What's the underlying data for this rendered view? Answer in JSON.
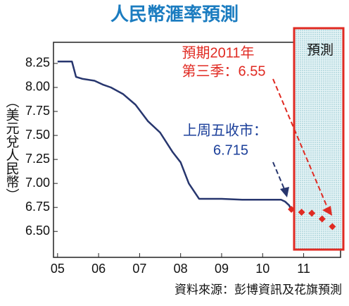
{
  "chart_data": {
    "type": "line",
    "title": "人民幣滙率預測",
    "y_label": "（美元兌人民幣）",
    "source": "資料來源：彭博資訊及花旗預測",
    "annotations": [
      "預期2011年",
      "第三季：6.55",
      "上周五收市：",
      "6.715",
      "預測"
    ],
    "xlim": [
      2004.9,
      2011.9
    ],
    "xticks": [
      {
        "value": 2005,
        "label": "05"
      },
      {
        "value": 2006,
        "label": "06"
      },
      {
        "value": 2007,
        "label": "07"
      },
      {
        "value": 2008,
        "label": "08"
      },
      {
        "value": 2009,
        "label": "09"
      },
      {
        "value": 2010,
        "label": "10"
      },
      {
        "value": 2011,
        "label": "11"
      }
    ],
    "ylim": [
      6.23,
      8.47
    ],
    "yticks": [
      {
        "value": 6.5,
        "label": "6.50"
      },
      6.75,
      {
        "value": 7.0,
        "label": "7.00"
      },
      7.25,
      {
        "value": 7.5,
        "label": "7.50"
      },
      7.75,
      {
        "value": 8.0,
        "label": "8.00"
      },
      8.25
    ],
    "series": [
      {
        "color": "#27366e",
        "x": [
          2005.0,
          2005.35,
          2005.45,
          2005.6,
          2005.9,
          2006.1,
          2006.3,
          2006.6,
          2006.9,
          2007.2,
          2007.5,
          2007.8,
          2008.0,
          2008.2,
          2008.45,
          2008.7,
          2009.0,
          2009.5,
          2010.0,
          2010.45,
          2010.55,
          2010.65,
          2010.7
        ],
        "values": [
          8.27,
          8.27,
          8.11,
          8.09,
          8.07,
          8.03,
          8.0,
          7.93,
          7.82,
          7.65,
          7.53,
          7.33,
          7.22,
          7.0,
          6.84,
          6.84,
          6.84,
          6.83,
          6.83,
          6.83,
          6.81,
          6.77,
          6.715
        ]
      },
      {
        "color": "#e02a22",
        "marker": "diamond",
        "x": [
          2010.7,
          2010.95,
          2011.2,
          2011.45,
          2011.7
        ],
        "values": [
          6.73,
          6.7,
          6.69,
          6.63,
          6.55
        ]
      }
    ]
  }
}
